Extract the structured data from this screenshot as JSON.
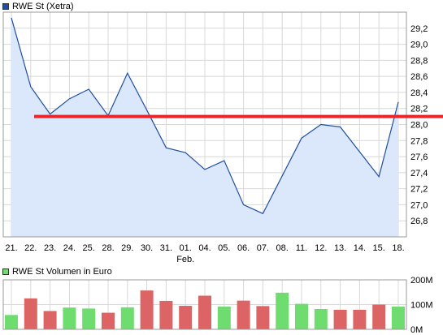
{
  "colors": {
    "price_line": "#1f4fa3",
    "price_fill": "#dbe7fb",
    "grid": "#d8d8d8",
    "frame": "#999999",
    "resistance": "#e8262b",
    "volume_up": "#6fdc6f",
    "volume_down": "#dd6464",
    "legend_price_swatch": "#1f4fa3",
    "legend_volume_swatch": "#6fdc6f"
  },
  "chart_data": [
    {
      "type": "area",
      "legend": "RWE St (Xetra)",
      "legend_placement": "top-left",
      "grid": true,
      "x_ticks": [
        "21.",
        "22.",
        "23.",
        "24.",
        "25.",
        "28.",
        "29.",
        "30.",
        "31.",
        "01.",
        "04.",
        "05.",
        "06.",
        "07.",
        "08.",
        "11.",
        "12.",
        "13.",
        "14.",
        "15.",
        "18."
      ],
      "month_label": {
        "text": "Feb.",
        "at_tick": "01."
      },
      "x": [
        "21.",
        "22.",
        "23.",
        "24.",
        "25.",
        "28.",
        "29.",
        "30.",
        "31.",
        "01.",
        "04.",
        "05.",
        "06.",
        "07.",
        "08.",
        "11.",
        "12.",
        "13.",
        "14.",
        "15.",
        "18."
      ],
      "series": [
        {
          "values": [
            29.33,
            28.47,
            28.13,
            28.32,
            28.44,
            28.11,
            28.64,
            28.18,
            27.71,
            27.65,
            27.44,
            27.55,
            27.0,
            26.89,
            27.36,
            27.83,
            28.0,
            27.97,
            27.66,
            27.35,
            28.28
          ]
        }
      ],
      "horizontal_line": {
        "y": 28.1,
        "extends_beyond_plot": true
      },
      "y_axis_side": "right",
      "ylim": [
        26.6,
        29.4
      ],
      "y_ticks": [
        "26,8",
        "27,0",
        "27,2",
        "27,4",
        "27,6",
        "27,8",
        "28,0",
        "28,2",
        "28,4",
        "28,6",
        "28,8",
        "29,0",
        "29,2"
      ]
    },
    {
      "type": "bar",
      "legend": "RWE St Volumen in Euro",
      "legend_placement": "top-left",
      "grid": true,
      "categories": [
        "21.",
        "22.",
        "23.",
        "24.",
        "25.",
        "28.",
        "29.",
        "30.",
        "31.",
        "01.",
        "04.",
        "05.",
        "06.",
        "07.",
        "08.",
        "11.",
        "12.",
        "13.",
        "14.",
        "15.",
        "18."
      ],
      "series": [
        {
          "values": [
            58,
            125,
            74,
            88,
            84,
            67,
            89,
            157,
            115,
            95,
            136,
            92,
            116,
            94,
            148,
            103,
            82,
            79,
            79,
            100,
            92
          ],
          "direction": [
            "up",
            "down",
            "down",
            "up",
            "up",
            "down",
            "up",
            "down",
            "down",
            "down",
            "down",
            "up",
            "down",
            "down",
            "up",
            "up",
            "up",
            "down",
            "down",
            "down",
            "up"
          ]
        }
      ],
      "y_axis_side": "right",
      "ylim": [
        0,
        200
      ],
      "y_ticks": [
        "0M",
        "100M",
        "200M"
      ]
    }
  ]
}
